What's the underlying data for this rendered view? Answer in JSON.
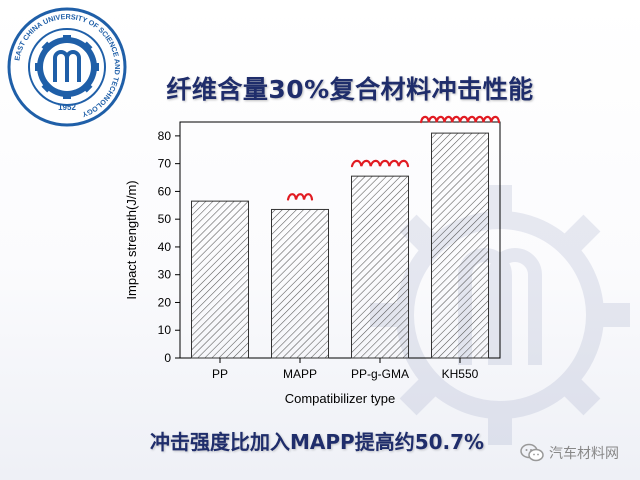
{
  "slide": {
    "title": "纤维含量30%复合材料冲击性能",
    "conclusion": "冲击强度比加入MAPP提高约50.7%",
    "watermark": "汽车材料网",
    "logo": {
      "name": "university-logo",
      "ring_text": "EAST CHINA UNIVERSITY OF SCIENCE AND TECHNOLOGY",
      "year": "1952"
    },
    "colors": {
      "title": "#1f2d6b",
      "logo": "#1f5fa8",
      "annotation": "#e11b22"
    }
  },
  "chart_data": {
    "type": "bar",
    "categories": [
      "PP",
      "MAPP",
      "PP-g-GMA",
      "KH550"
    ],
    "values": [
      56.5,
      53.5,
      65.5,
      81
    ],
    "xlabel": "Compatibilizer type",
    "ylabel": "Impact strength(J/m)",
    "ylim": [
      0,
      85
    ],
    "yticks": [
      0,
      10,
      20,
      30,
      40,
      50,
      60,
      70,
      80
    ],
    "bar_pattern": "diagonal-hatch",
    "grid": false,
    "annotations": [
      "red-squiggle-MAPP",
      "red-squiggle-PP-g-GMA",
      "red-squiggle-KH550"
    ]
  }
}
